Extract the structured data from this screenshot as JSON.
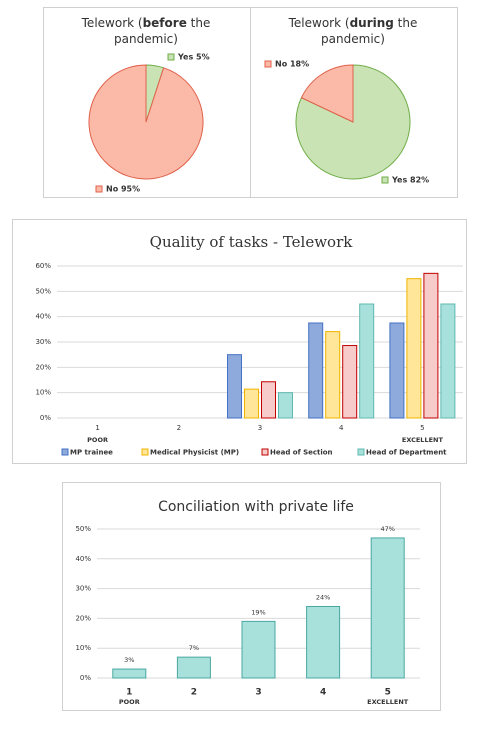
{
  "chart_data": [
    {
      "type": "pie",
      "title": [
        "Telework (",
        "before",
        " the",
        "pandemic)"
      ],
      "categories": [
        "Yes",
        "No"
      ],
      "values": [
        5,
        95
      ],
      "value_labels": [
        "Yes 5%",
        "No 95%"
      ],
      "colors": [
        "#c9e3b5",
        "#fbbaa8"
      ],
      "edge_colors": [
        "#70ad47",
        "#e0604a"
      ]
    },
    {
      "type": "pie",
      "title": [
        "Telework (",
        "during",
        " the",
        "pandemic)"
      ],
      "categories": [
        "Yes",
        "No"
      ],
      "values": [
        82,
        18
      ],
      "value_labels": [
        "Yes 82%",
        "No 18%"
      ],
      "colors": [
        "#c9e3b5",
        "#fbbaa8"
      ],
      "edge_colors": [
        "#70ad47",
        "#e0604a"
      ]
    },
    {
      "type": "grouped_bar",
      "title": "Quality of tasks - Telework",
      "categories": [
        "1",
        "2",
        "3",
        "4",
        "5"
      ],
      "category_notes": [
        "POOR",
        null,
        null,
        null,
        "EXCELLENT"
      ],
      "series": [
        {
          "name": "MP trainee",
          "color": "#8ea9db",
          "edge": "#4472c4",
          "values": [
            0,
            0,
            25,
            37.5,
            37.5
          ]
        },
        {
          "name": "Medical Physicist (MP)",
          "color": "#ffe699",
          "edge": "#f0b400",
          "values": [
            0,
            0,
            11.4,
            34.1,
            55
          ]
        },
        {
          "name": "Head of Section",
          "color": "#f8cbcb",
          "edge": "#c00000",
          "values": [
            0,
            0,
            14.3,
            28.6,
            57.1
          ]
        },
        {
          "name": "Head of Department",
          "color": "#a8e0dc",
          "edge": "#5fb8b0",
          "values": [
            0,
            0,
            10,
            45,
            45
          ]
        }
      ],
      "ylim": [
        0,
        60
      ],
      "yticks": [
        {
          "value": 0,
          "label": "0%"
        },
        {
          "value": 10,
          "label": "10%"
        },
        {
          "value": 20,
          "label": "20%"
        },
        {
          "value": 30,
          "label": "30%"
        },
        {
          "value": 40,
          "label": "40%"
        },
        {
          "value": 50,
          "label": "50%"
        },
        {
          "value": 60,
          "label": "60%"
        }
      ],
      "grid": true
    },
    {
      "type": "bar",
      "title": "Conciliation with private life",
      "categories": [
        "1",
        "2",
        "3",
        "4",
        "5"
      ],
      "category_notes": [
        "POOR",
        null,
        null,
        null,
        "EXCELLENT"
      ],
      "values": [
        3,
        7,
        19,
        24,
        47
      ],
      "value_labels": [
        "3%",
        "7%",
        "19%",
        "24%",
        "47%"
      ],
      "color": "#a8e0dc",
      "edge": "#4aa8a0",
      "ylim": [
        0,
        50
      ],
      "yticks": [
        {
          "value": 0,
          "label": "0%"
        },
        {
          "value": 10,
          "label": "10%"
        },
        {
          "value": 20,
          "label": "20%"
        },
        {
          "value": 30,
          "label": "30%"
        },
        {
          "value": 40,
          "label": "40%"
        },
        {
          "value": 50,
          "label": "50%"
        }
      ],
      "grid": true
    }
  ]
}
